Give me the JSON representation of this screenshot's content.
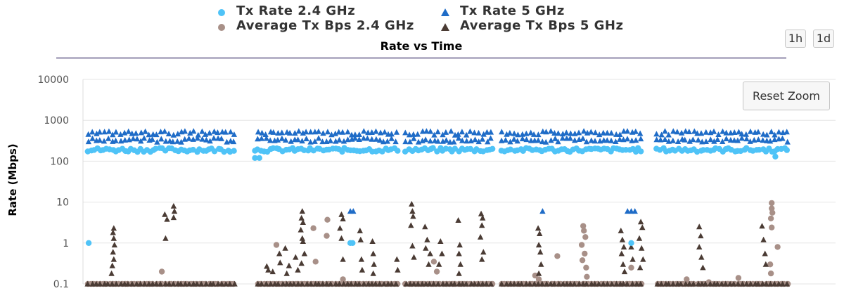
{
  "range_buttons": [
    "1h",
    "1d"
  ],
  "reset_zoom_label": "Reset Zoom",
  "chart_data": {
    "type": "scatter",
    "title": "Rate vs Time",
    "xlabel": "",
    "ylabel": "Rate (Mbps)",
    "y_scale": "log",
    "ylim": [
      0.1,
      10000
    ],
    "y_ticks": [
      "10000",
      "1000",
      "100",
      "10",
      "1",
      "0.1"
    ],
    "x_axis_labels_visible": false,
    "grid": "horizontal",
    "legend_position": "top",
    "x_segments": [
      [
        0,
        20
      ],
      [
        23,
        42
      ],
      [
        43,
        55
      ],
      [
        56,
        75
      ],
      [
        77,
        95
      ]
    ],
    "series": [
      {
        "name": "Tx Rate 2.4 GHz",
        "marker": "circle",
        "color": "#4fc3f7",
        "level_values": [
          190
        ],
        "isolated_points": [
          [
            0.1,
            1
          ],
          [
            22.6,
            180
          ],
          [
            22.6,
            120
          ],
          [
            23.2,
            120
          ],
          [
            35.5,
            1
          ],
          [
            35.8,
            1
          ],
          [
            73.5,
            1
          ],
          [
            86.4,
            200
          ],
          [
            93,
            130
          ]
        ]
      },
      {
        "name": "Tx Rate 5 GHz",
        "marker": "triangle",
        "color": "#1f6cc7",
        "level_values": [
          330,
          490
        ],
        "isolated_points": [
          [
            35.5,
            6
          ],
          [
            35.9,
            6
          ],
          [
            61.5,
            6
          ],
          [
            73,
            6
          ],
          [
            73.5,
            6
          ],
          [
            74,
            6
          ]
        ]
      },
      {
        "name": "Average Tx Bps 2.4 GHz",
        "marker": "circle",
        "color": "#a89088",
        "level_values": [
          0.1
        ],
        "isolated_points": [
          [
            10,
            0.2
          ],
          [
            25.5,
            0.9
          ],
          [
            30.5,
            2.3
          ],
          [
            30.8,
            0.35
          ],
          [
            32.3,
            1.5
          ],
          [
            32.4,
            3.7
          ],
          [
            34.5,
            0.13
          ],
          [
            46.8,
            0.35
          ],
          [
            47.2,
            0.2
          ],
          [
            60.5,
            0.16
          ],
          [
            61,
            0.13
          ],
          [
            63.5,
            0.48
          ],
          [
            67,
            2.6
          ],
          [
            67.1,
            2
          ],
          [
            67.3,
            1.4
          ],
          [
            66.8,
            0.9
          ],
          [
            67.2,
            0.55
          ],
          [
            66.9,
            0.38
          ],
          [
            67.4,
            0.25
          ],
          [
            67.5,
            0.15
          ],
          [
            73.5,
            0.25
          ],
          [
            81,
            0.13
          ],
          [
            84,
            0.11
          ],
          [
            88,
            0.14
          ],
          [
            92.5,
            9.5
          ],
          [
            92.5,
            7
          ],
          [
            92.6,
            5.5
          ],
          [
            92.4,
            4
          ],
          [
            92.5,
            2.4
          ],
          [
            92.3,
            0.3
          ],
          [
            92.4,
            0.18
          ],
          [
            93.3,
            0.8
          ]
        ]
      },
      {
        "name": "Average Tx Bps 5 GHz",
        "marker": "triangle",
        "color": "#4a3b34",
        "level_values": [
          0.1
        ],
        "isolated_points": [
          [
            3.5,
            2.3
          ],
          [
            3.4,
            1.8
          ],
          [
            3.5,
            1.3
          ],
          [
            3.6,
            0.9
          ],
          [
            3.4,
            0.6
          ],
          [
            3.5,
            0.4
          ],
          [
            3.3,
            0.28
          ],
          [
            3.2,
            0.18
          ],
          [
            10.4,
            5
          ],
          [
            10.7,
            3.8
          ],
          [
            10.5,
            1.3
          ],
          [
            11.6,
            8
          ],
          [
            11.7,
            6
          ],
          [
            11.6,
            4.2
          ],
          [
            24.2,
            0.27
          ],
          [
            24.4,
            0.22
          ],
          [
            25,
            0.2
          ],
          [
            25.9,
            0.55
          ],
          [
            26,
            0.33
          ],
          [
            26.7,
            0.75
          ],
          [
            27.2,
            0.28
          ],
          [
            26.9,
            0.18
          ],
          [
            28.1,
            0.45
          ],
          [
            28.4,
            0.22
          ],
          [
            29,
            6
          ],
          [
            28.9,
            4.1
          ],
          [
            29.1,
            3.2
          ],
          [
            28.8,
            2.1
          ],
          [
            29,
            1.3
          ],
          [
            29.1,
            1.1
          ],
          [
            29.3,
            0.55
          ],
          [
            28.9,
            0.32
          ],
          [
            34.3,
            5
          ],
          [
            34.5,
            3.9
          ],
          [
            34.1,
            2.3
          ],
          [
            34.3,
            1.3
          ],
          [
            34.5,
            0.4
          ],
          [
            36.8,
            2
          ],
          [
            36.9,
            1.2
          ],
          [
            37,
            0.4
          ],
          [
            37.1,
            0.22
          ],
          [
            38.5,
            1.1
          ],
          [
            38.6,
            0.55
          ],
          [
            38.7,
            0.3
          ],
          [
            38.6,
            0.18
          ],
          [
            41.8,
            0.4
          ],
          [
            41.9,
            0.22
          ],
          [
            43.8,
            9
          ],
          [
            43.9,
            6
          ],
          [
            44,
            4.5
          ],
          [
            43.7,
            2.7
          ],
          [
            43.9,
            0.85
          ],
          [
            44.1,
            0.45
          ],
          [
            45.6,
            2.5
          ],
          [
            45.9,
            1.2
          ],
          [
            45.7,
            0.75
          ],
          [
            46.3,
            0.55
          ],
          [
            46.1,
            0.3
          ],
          [
            47.7,
            1.1
          ],
          [
            47.9,
            0.55
          ],
          [
            47.5,
            0.3
          ],
          [
            50.1,
            3.6
          ],
          [
            50.3,
            0.9
          ],
          [
            50.2,
            0.55
          ],
          [
            50.4,
            0.3
          ],
          [
            50.2,
            0.18
          ],
          [
            53.2,
            5.2
          ],
          [
            53.4,
            4.1
          ],
          [
            53.3,
            2.7
          ],
          [
            53.1,
            1.4
          ],
          [
            53.5,
            0.6
          ],
          [
            53.3,
            0.4
          ],
          [
            60.9,
            2.3
          ],
          [
            61.1,
            1.7
          ],
          [
            61,
            0.9
          ],
          [
            61.2,
            0.6
          ],
          [
            61.3,
            0.3
          ],
          [
            61,
            0.18
          ],
          [
            72.1,
            2
          ],
          [
            72.3,
            1.2
          ],
          [
            72.5,
            0.8
          ],
          [
            72.2,
            0.55
          ],
          [
            72.4,
            0.3
          ],
          [
            72.6,
            0.2
          ],
          [
            73.5,
            0.8
          ],
          [
            73.7,
            0.4
          ],
          [
            74.8,
            3.3
          ],
          [
            75,
            2.4
          ],
          [
            74.6,
            1.3
          ],
          [
            74.9,
            0.75
          ],
          [
            75.1,
            0.4
          ],
          [
            74.7,
            0.25
          ],
          [
            82.7,
            2.5
          ],
          [
            82.9,
            1.5
          ],
          [
            82.7,
            0.8
          ],
          [
            83,
            0.45
          ],
          [
            83.2,
            0.25
          ],
          [
            91.2,
            2.6
          ],
          [
            91.4,
            1.2
          ],
          [
            91.6,
            0.55
          ],
          [
            91.7,
            0.3
          ]
        ]
      }
    ]
  }
}
